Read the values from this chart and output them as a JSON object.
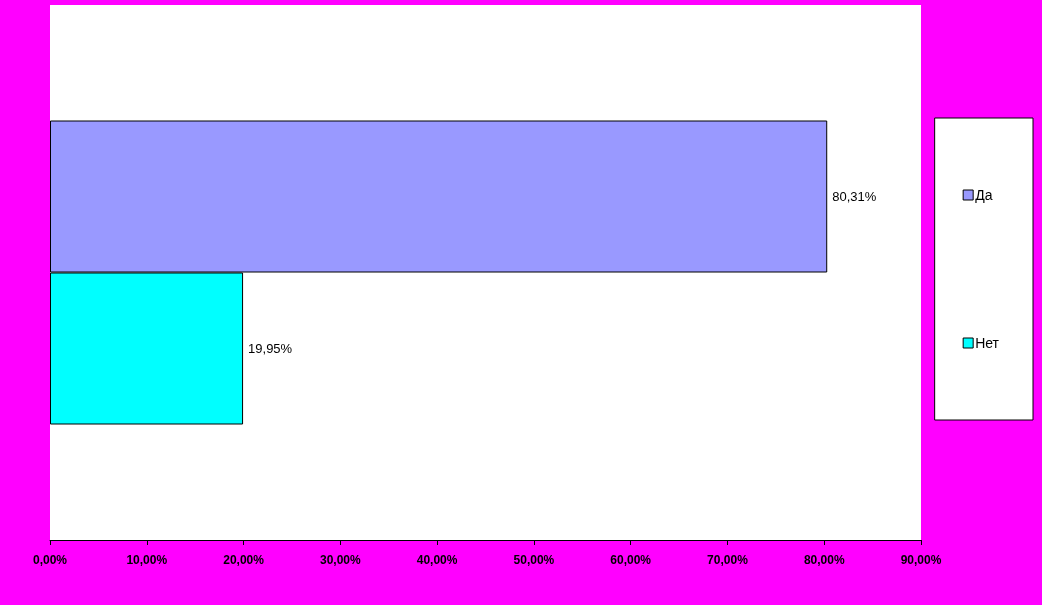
{
  "chart_data": {
    "type": "bar",
    "orientation": "horizontal",
    "categories": [
      null
    ],
    "series": [
      {
        "name": "Да",
        "color": "#9999ff",
        "values": [
          80.31
        ],
        "value_labels": [
          "80,31%"
        ]
      },
      {
        "name": "Нет",
        "color": "#00ffff",
        "values": [
          19.95
        ],
        "value_labels": [
          "19,95%"
        ]
      }
    ],
    "xlim": [
      0,
      90
    ],
    "xticks": [
      {
        "value": 0,
        "label": "0,00%"
      },
      {
        "value": 10,
        "label": "10,00%"
      },
      {
        "value": 20,
        "label": "20,00%"
      },
      {
        "value": 30,
        "label": "30,00%"
      },
      {
        "value": 40,
        "label": "40,00%"
      },
      {
        "value": 50,
        "label": "50,00%"
      },
      {
        "value": 60,
        "label": "60,00%"
      },
      {
        "value": 70,
        "label": "70,00%"
      },
      {
        "value": 80,
        "label": "80,00%"
      },
      {
        "value": 90,
        "label": "90,00%"
      }
    ],
    "grid": false,
    "legend": "right"
  }
}
